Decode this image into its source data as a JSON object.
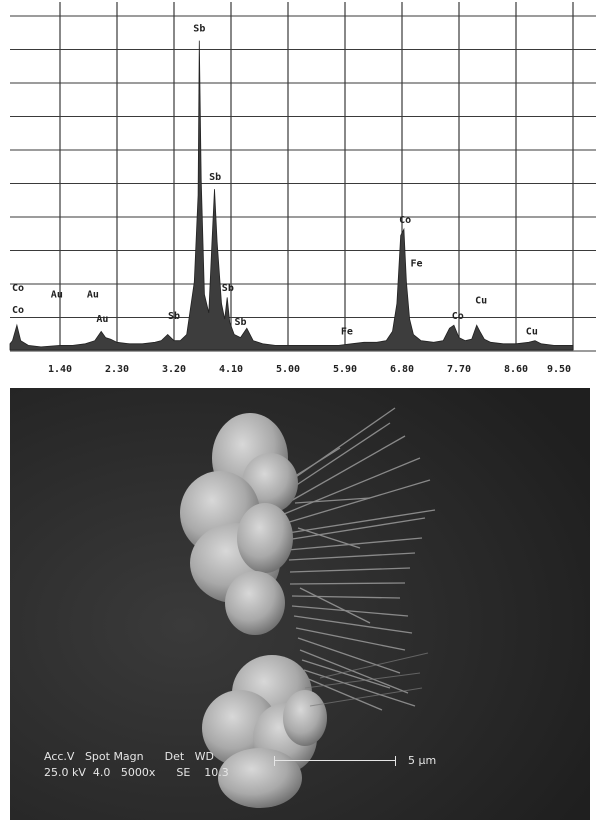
{
  "chart_data": {
    "type": "line",
    "title": "",
    "xlabel": "",
    "ylabel": "",
    "x_ticks": [
      "1.40",
      "2.30",
      "3.20",
      "4.10",
      "5.00",
      "5.90",
      "6.80",
      "7.70",
      "8.60",
      "9.50"
    ],
    "xlim": [
      0.5,
      9.5
    ],
    "ylim": [
      0,
      100
    ],
    "grid": true,
    "series": [
      {
        "points": [
          [
            0.5,
            1
          ],
          [
            0.6,
            2
          ],
          [
            0.65,
            3
          ],
          [
            0.72,
            8
          ],
          [
            0.78,
            3
          ],
          [
            0.9,
            1.5
          ],
          [
            1.1,
            1
          ],
          [
            1.4,
            1.5
          ],
          [
            1.6,
            1.5
          ],
          [
            1.8,
            2
          ],
          [
            1.95,
            3
          ],
          [
            2.05,
            6
          ],
          [
            2.12,
            4
          ],
          [
            2.2,
            3.5
          ],
          [
            2.3,
            2.5
          ],
          [
            2.5,
            2
          ],
          [
            2.7,
            2
          ],
          [
            2.9,
            2.5
          ],
          [
            3.0,
            3
          ],
          [
            3.1,
            5
          ],
          [
            3.2,
            3
          ],
          [
            3.3,
            3
          ],
          [
            3.4,
            5
          ],
          [
            3.52,
            22
          ],
          [
            3.58,
            50
          ],
          [
            3.6,
            100
          ],
          [
            3.63,
            55
          ],
          [
            3.68,
            18
          ],
          [
            3.75,
            12
          ],
          [
            3.8,
            35
          ],
          [
            3.84,
            52
          ],
          [
            3.88,
            35
          ],
          [
            3.95,
            15
          ],
          [
            4.0,
            10
          ],
          [
            4.04,
            17
          ],
          [
            4.08,
            9
          ],
          [
            4.15,
            5
          ],
          [
            4.25,
            4
          ],
          [
            4.35,
            7
          ],
          [
            4.45,
            3
          ],
          [
            4.6,
            2
          ],
          [
            4.8,
            1.5
          ],
          [
            5.0,
            1.5
          ],
          [
            5.3,
            1.5
          ],
          [
            5.6,
            1.5
          ],
          [
            5.8,
            1.5
          ],
          [
            6.0,
            2
          ],
          [
            6.2,
            2.5
          ],
          [
            6.4,
            2.5
          ],
          [
            6.55,
            3
          ],
          [
            6.65,
            6
          ],
          [
            6.72,
            15
          ],
          [
            6.78,
            37
          ],
          [
            6.83,
            39
          ],
          [
            6.87,
            22
          ],
          [
            6.92,
            10
          ],
          [
            6.98,
            5
          ],
          [
            7.1,
            3
          ],
          [
            7.3,
            2.5
          ],
          [
            7.45,
            3
          ],
          [
            7.55,
            7
          ],
          [
            7.62,
            8
          ],
          [
            7.7,
            4
          ],
          [
            7.8,
            3
          ],
          [
            7.9,
            3.5
          ],
          [
            7.98,
            8
          ],
          [
            8.03,
            6
          ],
          [
            8.1,
            3.5
          ],
          [
            8.2,
            2.5
          ],
          [
            8.4,
            2
          ],
          [
            8.6,
            2
          ],
          [
            8.8,
            2.5
          ],
          [
            8.9,
            3
          ],
          [
            9.0,
            2
          ],
          [
            9.2,
            1.5
          ],
          [
            9.5,
            1.5
          ]
        ]
      }
    ],
    "annotations": [
      {
        "text": "Sb",
        "x": 3.6,
        "y": 103
      },
      {
        "text": "Sb",
        "x": 3.85,
        "y": 55
      },
      {
        "text": "Sb",
        "x": 4.05,
        "y": 19
      },
      {
        "text": "Sb",
        "x": 4.25,
        "y": 8
      },
      {
        "text": "Sb",
        "x": 3.2,
        "y": 10
      },
      {
        "text": "Co",
        "x": 0.55,
        "y": 19
      },
      {
        "text": "Co",
        "x": 0.62,
        "y": 12
      },
      {
        "text": "Au",
        "x": 1.35,
        "y": 17
      },
      {
        "text": "Au",
        "x": 1.92,
        "y": 17
      },
      {
        "text": "Au",
        "x": 2.07,
        "y": 9
      },
      {
        "text": "Fe",
        "x": 5.93,
        "y": 5
      },
      {
        "text": "Co",
        "x": 6.85,
        "y": 41
      },
      {
        "text": "Fe",
        "x": 7.03,
        "y": 27
      },
      {
        "text": "Co",
        "x": 7.68,
        "y": 10
      },
      {
        "text": "Cu",
        "x": 8.05,
        "y": 15
      },
      {
        "text": "Cu",
        "x": 8.85,
        "y": 5
      }
    ]
  },
  "sem_info": {
    "header": "Acc.V   Spot Magn      Det   WD",
    "values": "25.0 kV  4.0   5000x      SE    10.3",
    "scale_label": "5 µm"
  },
  "colors": {
    "spectrum_fill": "#3d3d3d",
    "grid": "#3a3a3a",
    "sem_background": "#262626",
    "sem_text": "#e6e6e6"
  }
}
